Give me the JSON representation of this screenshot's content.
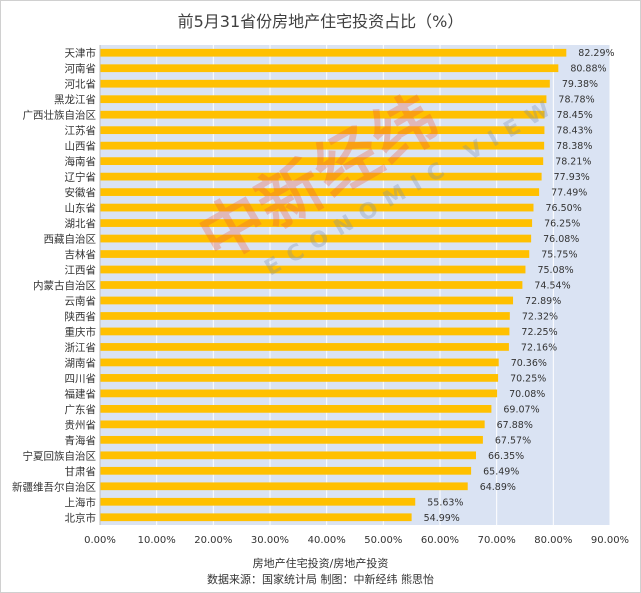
{
  "title": "前5月31省份房地产住宅投资占比（%）",
  "xlabel": "房地产住宅投资/房地产投资",
  "source": "数据来源：国家统计局 制图：中新经纬 熊思怡",
  "watermark": {
    "main": "中新经纬",
    "sub": "ECONOMIC VIEW"
  },
  "colors": {
    "bar": "#FFC000",
    "plot_bg": "#DAE3F3",
    "grid": "#ffffff"
  },
  "chart_data": {
    "type": "bar",
    "orientation": "horizontal",
    "categories": [
      "天津市",
      "河南省",
      "河北省",
      "黑龙江省",
      "广西壮族自治区",
      "江苏省",
      "山西省",
      "海南省",
      "辽宁省",
      "安徽省",
      "山东省",
      "湖北省",
      "西藏自治区",
      "吉林省",
      "江西省",
      "内蒙古自治区",
      "云南省",
      "陕西省",
      "重庆市",
      "浙江省",
      "湖南省",
      "四川省",
      "福建省",
      "广东省",
      "贵州省",
      "青海省",
      "宁夏回族自治区",
      "甘肃省",
      "新疆维吾尔自治区",
      "上海市",
      "北京市"
    ],
    "values": [
      82.29,
      80.88,
      79.38,
      78.78,
      78.45,
      78.43,
      78.38,
      78.21,
      77.93,
      77.49,
      76.5,
      76.25,
      76.08,
      75.75,
      75.08,
      74.54,
      72.89,
      72.32,
      72.25,
      72.16,
      70.36,
      70.25,
      70.08,
      69.07,
      67.88,
      67.57,
      66.35,
      65.49,
      64.89,
      55.63,
      54.99
    ],
    "labels": [
      "82.29%",
      "80.88%",
      "79.38%",
      "78.78%",
      "78.45%",
      "78.43%",
      "78.38%",
      "78.21%",
      "77.93%",
      "77.49%",
      "76.50%",
      "76.25%",
      "76.08%",
      "75.75%",
      "75.08%",
      "74.54%",
      "72.89%",
      "72.32%",
      "72.25%",
      "72.16%",
      "70.36%",
      "70.25%",
      "70.08%",
      "69.07%",
      "67.88%",
      "67.57%",
      "66.35%",
      "65.49%",
      "64.89%",
      "55.63%",
      "54.99%"
    ],
    "xlim": [
      0,
      90
    ],
    "xticks": [
      "0.00%",
      "10.00%",
      "20.00%",
      "30.00%",
      "40.00%",
      "50.00%",
      "60.00%",
      "70.00%",
      "80.00%",
      "90.00%"
    ],
    "grid": true
  }
}
